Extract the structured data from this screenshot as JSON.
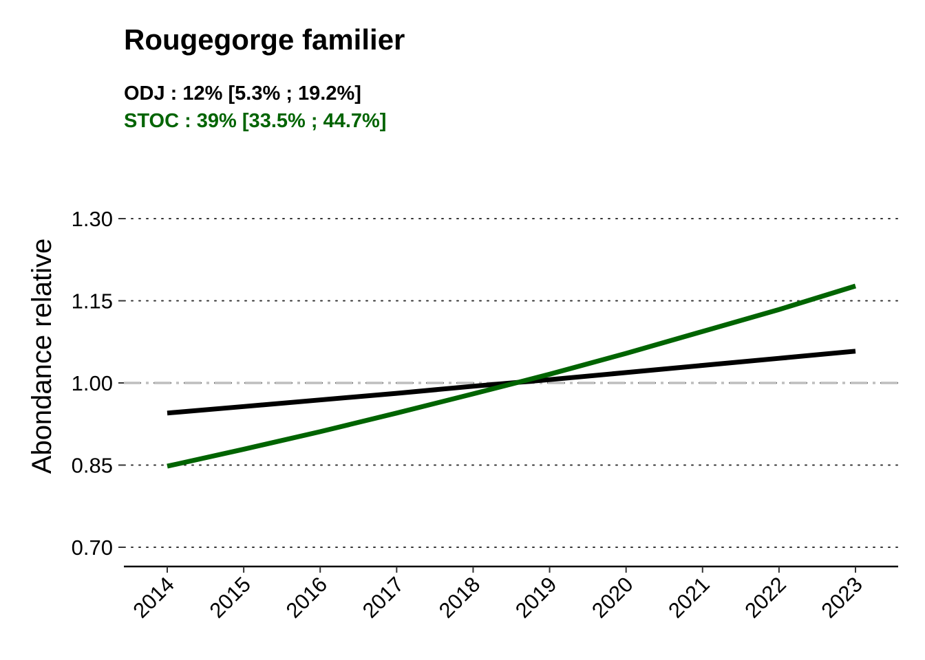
{
  "chart_data": {
    "type": "line",
    "title": "Rougegorge familier",
    "subtitles": [
      {
        "text": "ODJ : 12% [5.3% ; 19.2%]",
        "color": "#000000"
      },
      {
        "text": "STOC : 39% [33.5% ; 44.7%]",
        "color": "#006400"
      }
    ],
    "ylabel": "Abondance relative",
    "xlabel": "",
    "x": [
      2014,
      2015,
      2016,
      2017,
      2018,
      2019,
      2020,
      2021,
      2022,
      2023
    ],
    "ylim": [
      0.665,
      1.3
    ],
    "yticks": [
      "1.30",
      "1.15",
      "1.00",
      "0.85",
      "0.70"
    ],
    "reference_line": {
      "y": 1.0,
      "color": "#bebebe",
      "style": "dashdot"
    },
    "grid": "horizontal dotted",
    "series": [
      {
        "key": "odj",
        "color": "#000000",
        "values": [
          0.945,
          0.957,
          0.969,
          0.981,
          0.994,
          1.006,
          1.019,
          1.032,
          1.045,
          1.058
        ]
      },
      {
        "key": "stoc",
        "color": "#006400",
        "values": [
          0.848,
          0.879,
          0.911,
          0.945,
          0.98,
          1.016,
          1.054,
          1.094,
          1.134,
          1.177
        ]
      }
    ]
  }
}
